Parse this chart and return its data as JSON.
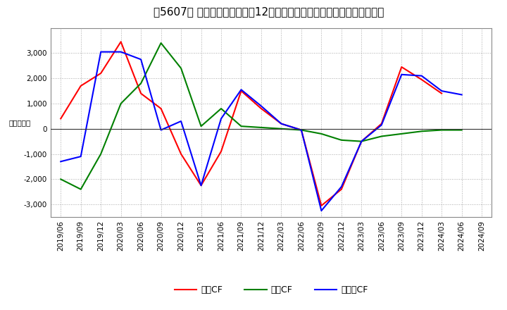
{
  "title": "［5607］ キャッシュフローの12か月移動合計の対前年同期増減額の推移",
  "ylabel": "（百万円）",
  "x_labels": [
    "2019/06",
    "2019/09",
    "2019/12",
    "2020/03",
    "2020/06",
    "2020/09",
    "2020/12",
    "2021/03",
    "2021/06",
    "2021/09",
    "2021/12",
    "2022/03",
    "2022/06",
    "2022/09",
    "2022/12",
    "2023/03",
    "2023/06",
    "2023/09",
    "2023/12",
    "2024/03",
    "2024/06",
    "2024/09"
  ],
  "operating_cf": [
    400,
    1700,
    2200,
    3450,
    1400,
    800,
    -1000,
    -2250,
    -900,
    1500,
    800,
    200,
    -50,
    -3050,
    -2400,
    -500,
    200,
    2450,
    1950,
    1400,
    null,
    null
  ],
  "investing_cf": [
    -2000,
    -2400,
    -1000,
    1000,
    1800,
    3400,
    2400,
    100,
    800,
    100,
    50,
    0,
    -50,
    -200,
    -450,
    -500,
    -300,
    -200,
    -100,
    -50,
    -50,
    null
  ],
  "free_cf": [
    -1300,
    -1100,
    3050,
    3050,
    2750,
    -50,
    300,
    -2250,
    400,
    1550,
    900,
    200,
    -50,
    -3250,
    -2300,
    -500,
    150,
    2150,
    2100,
    1500,
    1350,
    null
  ],
  "line_colors": {
    "operating": "#ff0000",
    "investing": "#008000",
    "free": "#0000ff"
  },
  "legend_labels": [
    "営業CF",
    "投資CF",
    "フリーCF"
  ],
  "ylim": [
    -3500,
    4000
  ],
  "yticks": [
    -3000,
    -2000,
    -1000,
    0,
    1000,
    2000,
    3000
  ],
  "background_color": "#ffffff",
  "plot_bg_color": "#ffffff",
  "grid_color": "#aaaaaa",
  "title_fontsize": 11,
  "axis_fontsize": 7.5
}
